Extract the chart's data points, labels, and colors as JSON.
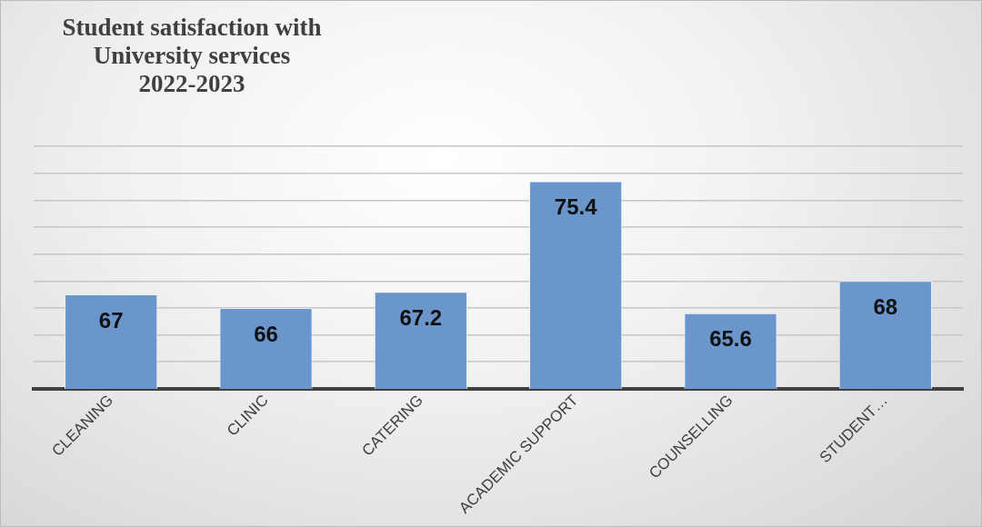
{
  "chart_data": {
    "type": "bar",
    "title": "Student satisfaction with\nUniversity services\n2022-2023",
    "categories": [
      "CLEANING",
      "CLINIC",
      "CATERING",
      "ACADEMIC SUPPORT",
      "COUNSELLING",
      "STUDENT…"
    ],
    "values": [
      67,
      66,
      67.2,
      75.4,
      65.6,
      68
    ],
    "color": "#6a96cc",
    "ylim": [
      60,
      78
    ],
    "yticks": [
      {
        "value": 60,
        "label": null
      },
      {
        "value": 62,
        "label": null
      },
      {
        "value": 64,
        "label": null
      },
      {
        "value": 66,
        "label": null
      },
      {
        "value": 68,
        "label": null
      },
      {
        "value": 70,
        "label": null
      },
      {
        "value": 72,
        "label": null
      },
      {
        "value": 74,
        "label": null
      },
      {
        "value": 76,
        "label": null
      },
      {
        "value": 78,
        "label": null
      }
    ],
    "grid": "y",
    "tick_labels": "x",
    "data_labels": true
  }
}
